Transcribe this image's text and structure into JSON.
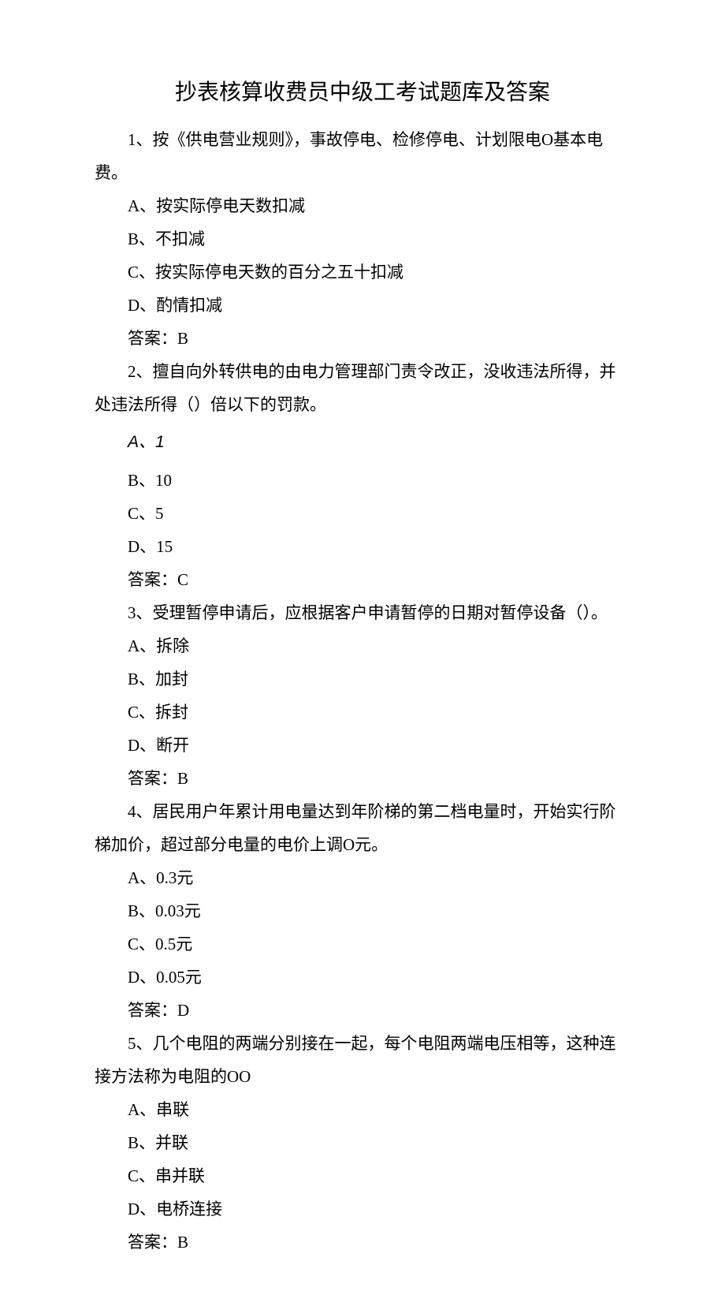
{
  "title": "抄表核算收费员中级工考试题库及答案",
  "questions": [
    {
      "number": "1",
      "text": "1、按《供电营业规则》，事故停电、检修停电、计划限电O基本电费。",
      "options": [
        "A、按实际停电天数扣减",
        "B、不扣减",
        "C、按实际停电天数的百分之五十扣减",
        "D、酌情扣减"
      ],
      "answer": "答案：B"
    },
    {
      "number": "2",
      "text": "2、擅自向外转供电的由电力管理部门责令改正，没收违法所得，并处违法所得（）倍以下的罚款。",
      "options_special": "A、1",
      "options": [
        "B、10",
        "C、5",
        "D、15"
      ],
      "answer": "答案：C"
    },
    {
      "number": "3",
      "text": "3、受理暂停申请后，应根据客户申请暂停的日期对暂停设备（）。",
      "options": [
        "A、拆除",
        "B、加封",
        "C、拆封",
        "D、断开"
      ],
      "answer": "答案：B"
    },
    {
      "number": "4",
      "text": "4、居民用户年累计用电量达到年阶梯的第二档电量时，开始实行阶梯加价，超过部分电量的电价上调O元。",
      "options": [
        "A、0.3元",
        "B、0.03元",
        "C、0.5元",
        "D、0.05元"
      ],
      "answer": "答案：D"
    },
    {
      "number": "5",
      "text": "5、几个电阻的两端分别接在一起，每个电阻两端电压相等，这种连接方法称为电阻的OO",
      "options": [
        "A、串联",
        "B、并联",
        "C、串并联",
        "D、电桥连接"
      ],
      "answer": "答案：B"
    }
  ]
}
